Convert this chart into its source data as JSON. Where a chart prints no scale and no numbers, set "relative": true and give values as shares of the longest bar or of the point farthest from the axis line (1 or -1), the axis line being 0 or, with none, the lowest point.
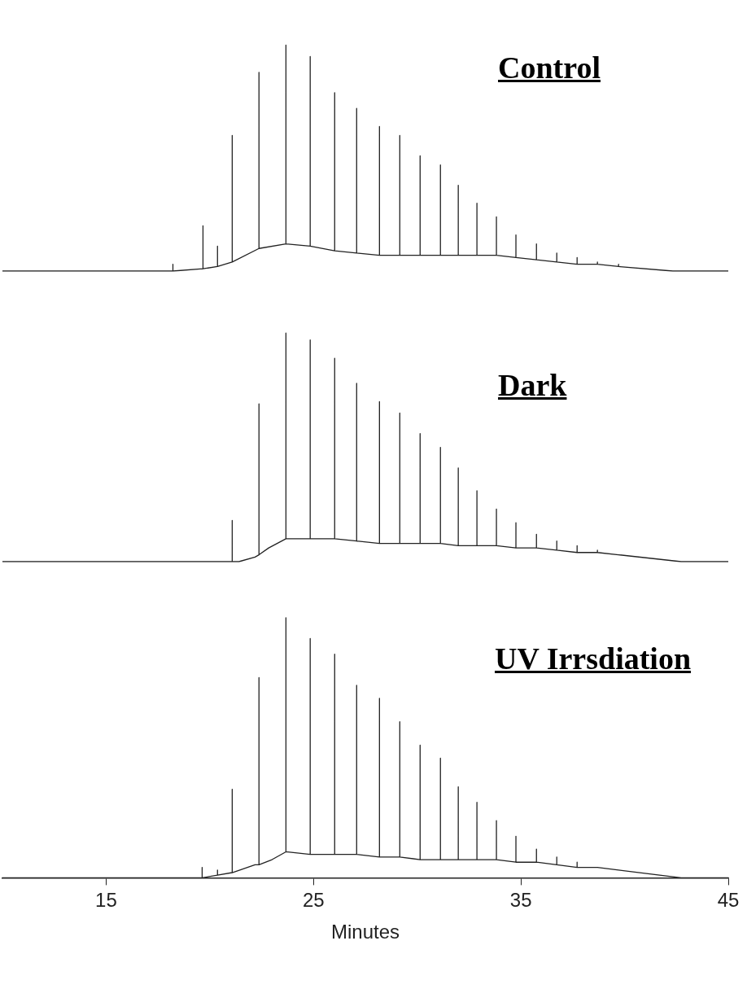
{
  "chart_data": [
    {
      "type": "line",
      "relative": true,
      "tick_labels": false,
      "xlim": [
        10,
        45
      ],
      "marker": "none",
      "series": [
        {
          "name": "Control",
          "color": "#222222",
          "x": [
            10,
            18.22,
            18.22,
            18.22,
            19.67,
            19.67,
            19.67,
            20.37,
            20.37,
            20.37,
            21.08,
            21.08,
            21.08,
            22.37,
            22.37,
            22.37,
            23.67,
            23.67,
            23.67,
            24.84,
            24.84,
            24.84,
            26.02,
            26.02,
            26.02,
            27.08,
            27.08,
            27.08,
            28.18,
            28.18,
            28.18,
            29.16,
            29.16,
            29.16,
            30.14,
            30.14,
            30.14,
            31.12,
            31.12,
            31.12,
            31.98,
            31.98,
            31.98,
            32.88,
            32.88,
            32.88,
            33.82,
            33.82,
            33.82,
            34.76,
            34.76,
            34.76,
            35.75,
            35.75,
            35.75,
            36.73,
            36.73,
            36.73,
            37.71,
            37.71,
            37.71,
            38.69,
            38.69,
            38.69,
            39.71,
            39.71,
            39.71,
            42.33,
            45
          ],
          "values": [
            0,
            0,
            0.03,
            0,
            0.01,
            0.2,
            0.01,
            0.02,
            0.11,
            0.02,
            0.04,
            0.6,
            0.04,
            0.1,
            0.88,
            0.1,
            0.12,
            1.0,
            0.12,
            0.11,
            0.95,
            0.11,
            0.09,
            0.79,
            0.09,
            0.08,
            0.72,
            0.08,
            0.07,
            0.64,
            0.07,
            0.07,
            0.6,
            0.07,
            0.07,
            0.51,
            0.07,
            0.07,
            0.47,
            0.07,
            0.07,
            0.38,
            0.07,
            0.07,
            0.3,
            0.07,
            0.07,
            0.24,
            0.07,
            0.06,
            0.16,
            0.06,
            0.05,
            0.12,
            0.05,
            0.04,
            0.08,
            0.04,
            0.03,
            0.06,
            0.03,
            0.03,
            0.04,
            0.03,
            0.02,
            0.03,
            0.02,
            0,
            0
          ]
        }
      ]
    },
    {
      "type": "line",
      "relative": true,
      "tick_labels": false,
      "xlim": [
        10,
        45
      ],
      "marker": "none",
      "series": [
        {
          "name": "Dark",
          "color": "#222222",
          "x": [
            10,
            21.08,
            21.08,
            21.08,
            21.4,
            22.18,
            22.37,
            22.37,
            22.37,
            22.84,
            23.67,
            23.67,
            23.67,
            24.84,
            24.84,
            24.84,
            26.02,
            26.02,
            26.02,
            27.08,
            27.08,
            27.08,
            28.18,
            28.18,
            28.18,
            29.16,
            29.16,
            29.16,
            30.14,
            30.14,
            30.14,
            31.12,
            31.12,
            31.12,
            31.98,
            31.98,
            31.98,
            32.88,
            32.88,
            32.88,
            33.82,
            33.82,
            33.82,
            34.76,
            34.76,
            34.76,
            35.75,
            35.75,
            35.75,
            36.73,
            36.73,
            36.73,
            37.71,
            37.71,
            37.71,
            38.69,
            38.69,
            38.69,
            39.71,
            42.73,
            45
          ],
          "values": [
            0,
            0,
            0.18,
            0,
            0,
            0.02,
            0.03,
            0.69,
            0.03,
            0.06,
            0.1,
            1.0,
            0.1,
            0.1,
            0.97,
            0.1,
            0.1,
            0.89,
            0.1,
            0.09,
            0.78,
            0.09,
            0.08,
            0.7,
            0.08,
            0.08,
            0.65,
            0.08,
            0.08,
            0.56,
            0.08,
            0.08,
            0.5,
            0.08,
            0.07,
            0.41,
            0.07,
            0.07,
            0.31,
            0.07,
            0.07,
            0.23,
            0.07,
            0.06,
            0.17,
            0.06,
            0.06,
            0.12,
            0.06,
            0.05,
            0.09,
            0.05,
            0.04,
            0.07,
            0.04,
            0.04,
            0.05,
            0.04,
            0.03,
            0,
            0
          ]
        }
      ]
    },
    {
      "type": "line",
      "relative": true,
      "tick_labels": "x",
      "xlim": [
        10,
        45
      ],
      "xticks": [
        15,
        25,
        35,
        45
      ],
      "xlabel": "Minutes",
      "marker": "none",
      "series": [
        {
          "name": "UV Irrsdiation",
          "color": "#222222",
          "x": [
            10,
            19.63,
            19.63,
            19.63,
            20.37,
            20.37,
            20.37,
            21.08,
            21.08,
            21.08,
            22.18,
            22.37,
            22.37,
            22.37,
            23.0,
            23.67,
            23.67,
            23.67,
            24.84,
            24.84,
            24.84,
            26.02,
            26.02,
            26.02,
            27.08,
            27.08,
            27.08,
            28.18,
            28.18,
            28.18,
            29.16,
            29.16,
            29.16,
            30.14,
            30.14,
            30.14,
            31.12,
            31.12,
            31.12,
            31.98,
            31.98,
            31.98,
            32.88,
            32.88,
            32.88,
            33.82,
            33.82,
            33.82,
            34.76,
            34.76,
            34.76,
            35.75,
            35.75,
            35.75,
            36.73,
            36.73,
            36.73,
            37.71,
            37.71,
            37.71,
            38.69,
            38.69,
            38.69,
            39.71,
            42.73,
            45
          ],
          "values": [
            0,
            0,
            0.04,
            0,
            0.01,
            0.03,
            0.01,
            0.02,
            0.34,
            0.02,
            0.05,
            0.05,
            0.77,
            0.05,
            0.07,
            0.1,
            1.0,
            0.1,
            0.09,
            0.92,
            0.09,
            0.09,
            0.86,
            0.09,
            0.09,
            0.74,
            0.09,
            0.08,
            0.69,
            0.08,
            0.08,
            0.6,
            0.08,
            0.07,
            0.51,
            0.07,
            0.07,
            0.46,
            0.07,
            0.07,
            0.35,
            0.07,
            0.07,
            0.29,
            0.07,
            0.07,
            0.22,
            0.07,
            0.06,
            0.16,
            0.06,
            0.06,
            0.11,
            0.06,
            0.05,
            0.08,
            0.05,
            0.04,
            0.06,
            0.04,
            0.04,
            0.04,
            0.04,
            0.03,
            0,
            0
          ]
        }
      ]
    }
  ]
}
